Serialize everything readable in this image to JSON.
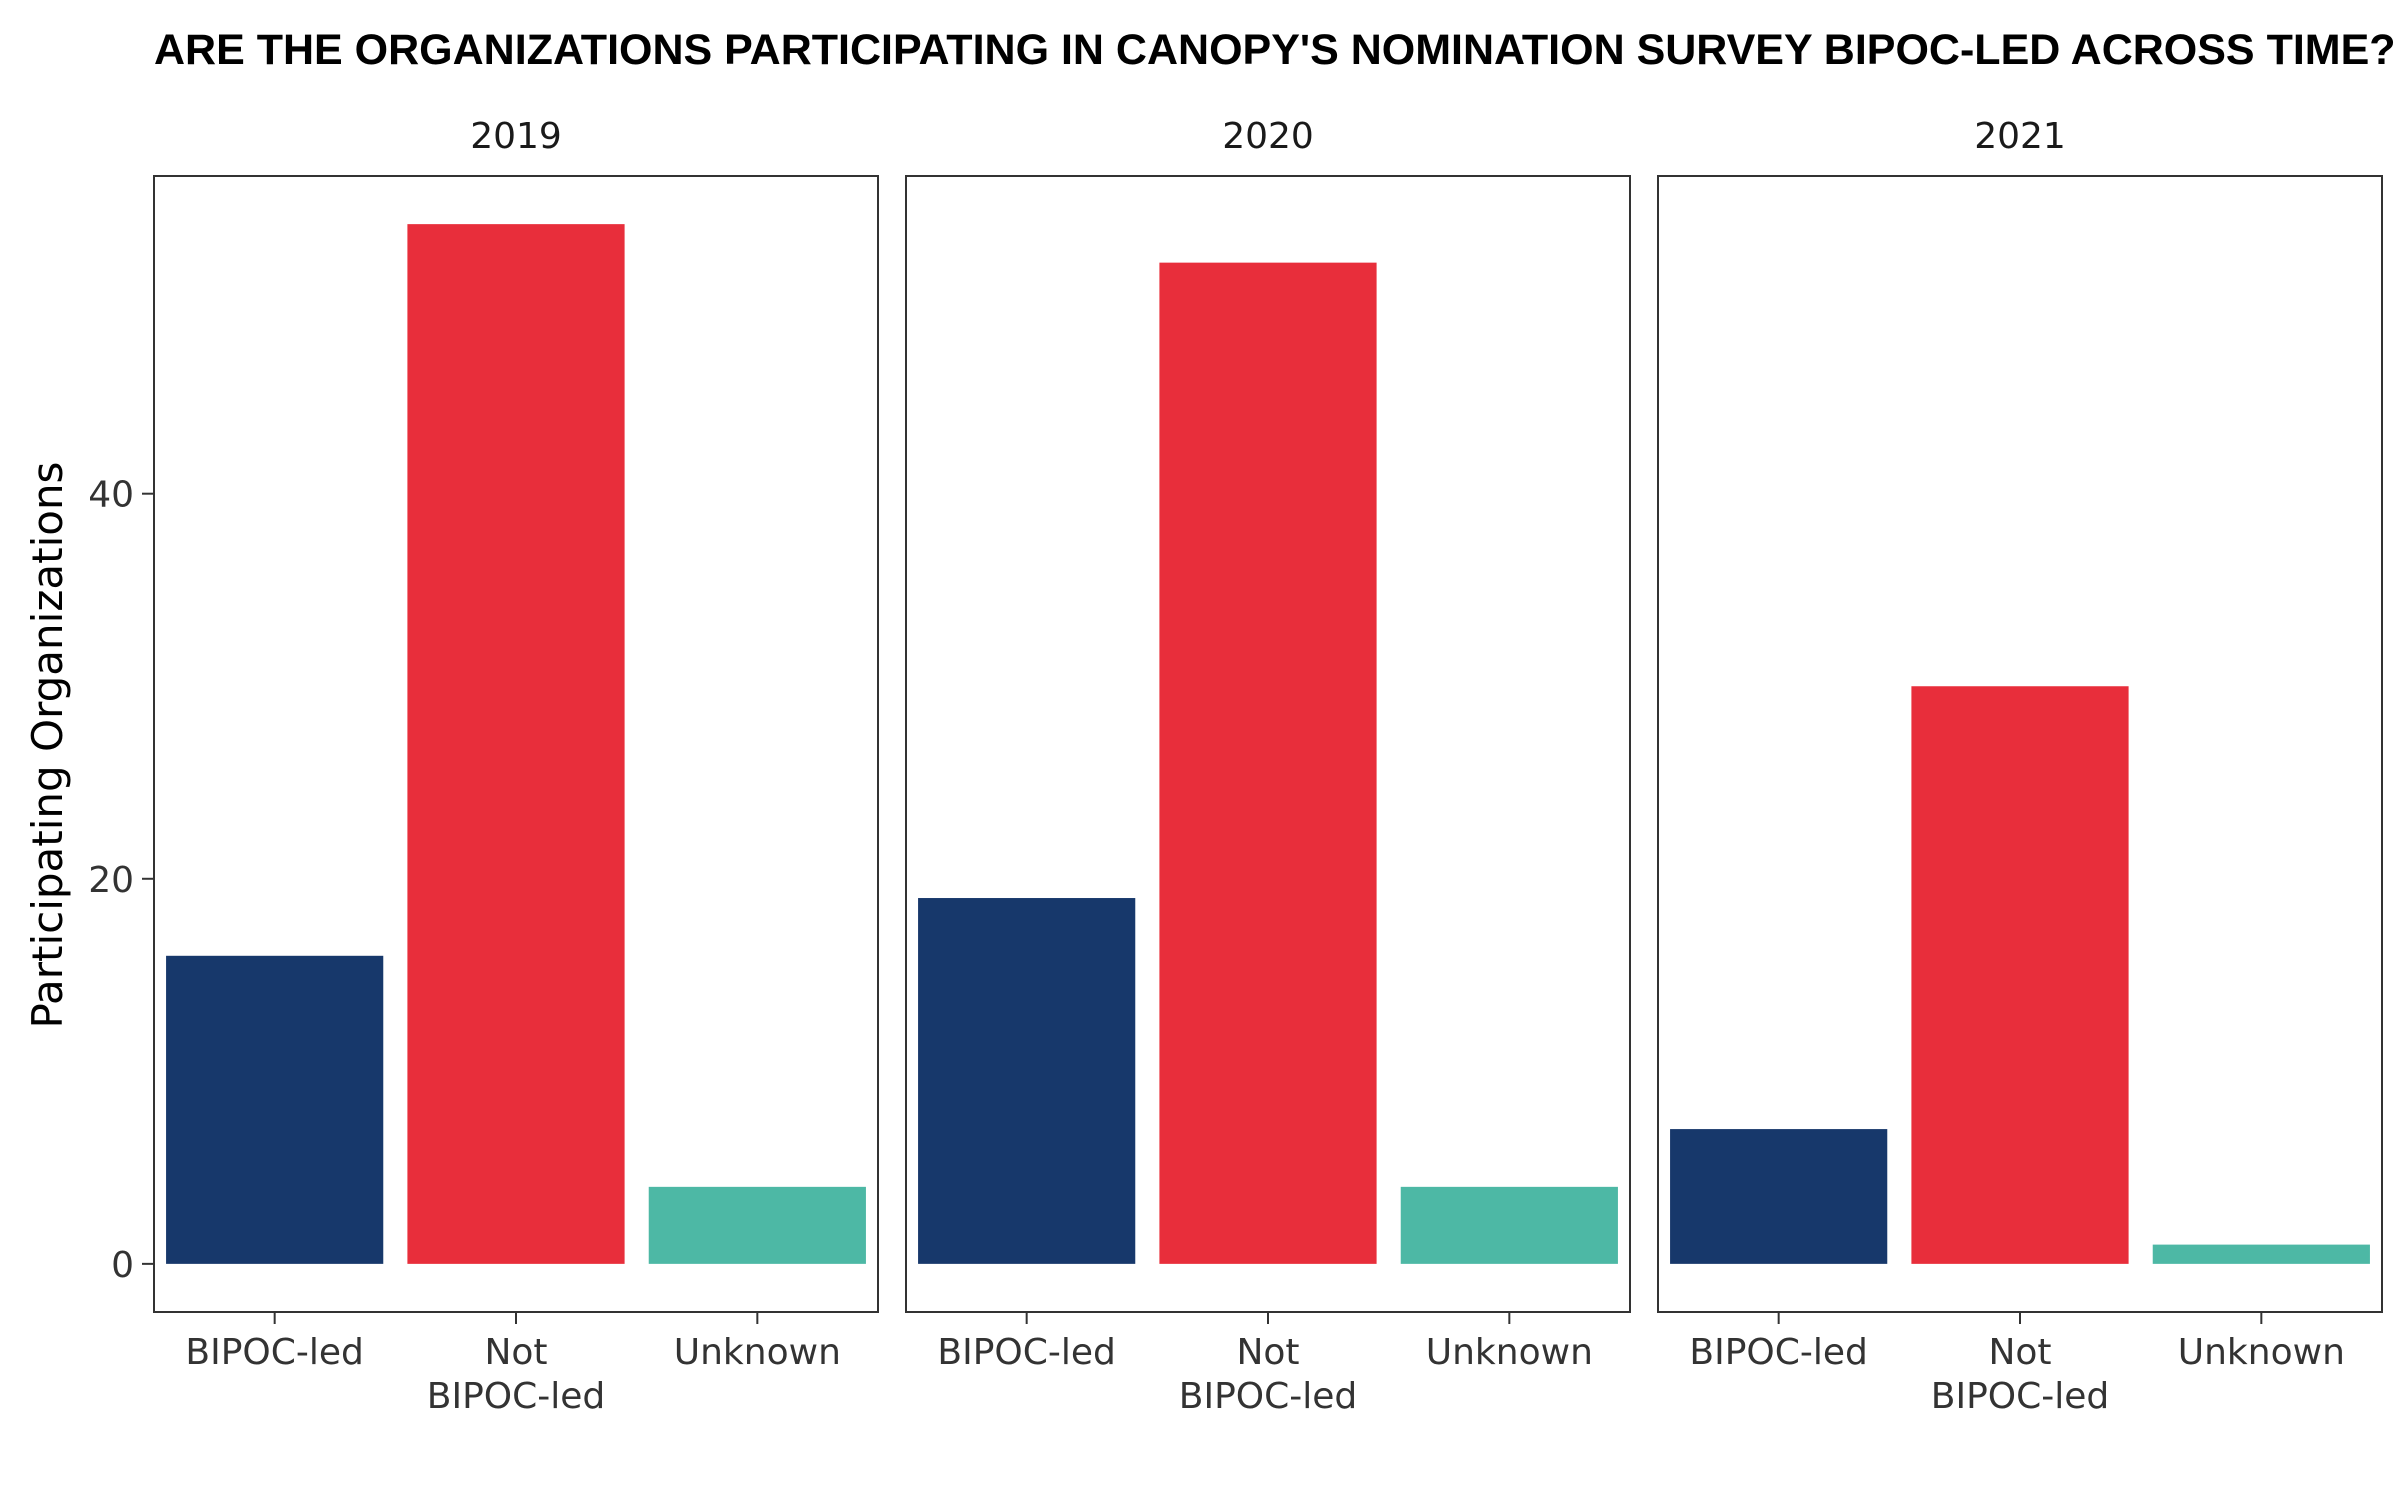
{
  "chart_data": {
    "type": "bar",
    "title": "ARE THE ORGANIZATIONS PARTICIPATING IN CANOPY'S NOMINATION SURVEY BIPOC-LED ACROSS TIME?",
    "xlabel": "",
    "ylabel": "Participating Organizations",
    "ylim": [
      -2.5,
      56.5
    ],
    "yticks": [
      0,
      20,
      40
    ],
    "grid": false,
    "legend": "none",
    "categories": [
      "BIPOC-led",
      "Not\nBIPOC-led",
      "Unknown"
    ],
    "colors": [
      "#17386B",
      "#E82E3B",
      "#4DB8A5"
    ],
    "panels": [
      {
        "facet": "2019",
        "values": [
          16,
          54,
          4
        ]
      },
      {
        "facet": "2020",
        "values": [
          19,
          52,
          4
        ]
      },
      {
        "facet": "2021",
        "values": [
          7,
          30,
          1
        ]
      }
    ]
  }
}
